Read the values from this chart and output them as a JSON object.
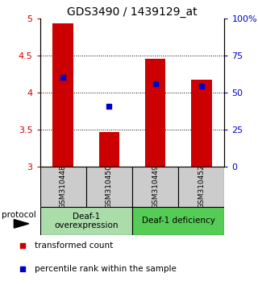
{
  "title": "GDS3490 / 1439129_at",
  "samples": [
    "GSM310448",
    "GSM310450",
    "GSM310449",
    "GSM310452"
  ],
  "bar_bottoms": [
    3.0,
    3.0,
    3.0,
    3.0
  ],
  "bar_tops": [
    4.93,
    3.47,
    4.46,
    4.17
  ],
  "percentile_values": [
    4.21,
    3.82,
    4.12,
    4.09
  ],
  "ylim_left": [
    3.0,
    5.0
  ],
  "ylim_right": [
    0,
    100
  ],
  "yticks_left": [
    3.0,
    3.5,
    4.0,
    4.5,
    5.0
  ],
  "yticks_right": [
    0,
    25,
    50,
    75,
    100
  ],
  "yticklabels_left": [
    "3",
    "3.5",
    "4",
    "4.5",
    "5"
  ],
  "yticklabels_right": [
    "0",
    "25",
    "50",
    "75",
    "100%"
  ],
  "bar_color": "#cc0000",
  "percentile_color": "#0000cc",
  "bar_width": 0.45,
  "group1_label": "Deaf-1\noverexpression",
  "group2_label": "Deaf-1 deficiency",
  "group1_color": "#aaddaa",
  "group2_color": "#55cc55",
  "protocol_label": "protocol",
  "legend_red_label": "transformed count",
  "legend_blue_label": "percentile rank within the sample",
  "sample_box_color": "#cccccc",
  "title_fontsize": 10,
  "tick_fontsize": 8,
  "legend_fontsize": 7.5,
  "sample_fontsize": 6.5,
  "group_fontsize": 7.5
}
